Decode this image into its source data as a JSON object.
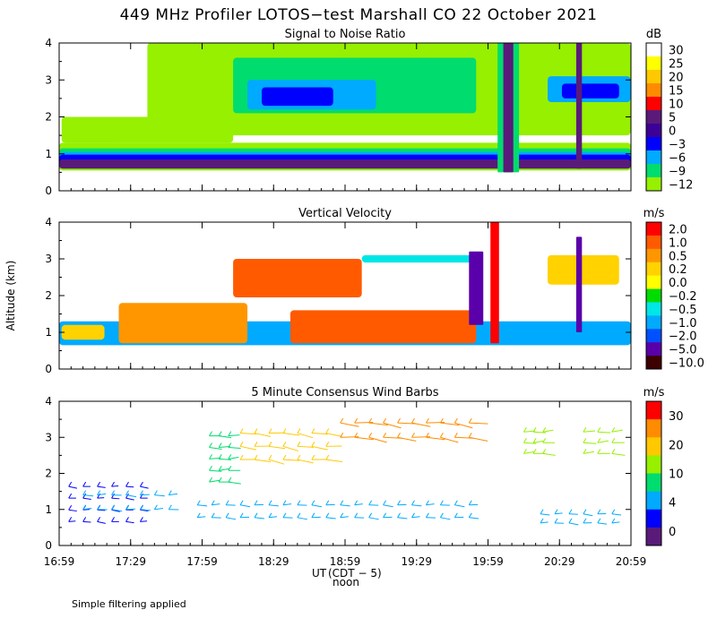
{
  "title": "449 MHz Profiler LOTOS−test Marshall CO 22 October 2021",
  "footnote": "Simple filtering applied",
  "axes": {
    "ylabel": "Altitude (km)",
    "xlabel": "UT",
    "xlabel2": "(CDT − 5)",
    "noon_label": "noon",
    "x_ticks": [
      "16:59",
      "17:29",
      "17:59",
      "18:29",
      "18:59",
      "19:29",
      "19:59",
      "20:29",
      "20:59"
    ],
    "y_ticks": [
      "0",
      "1",
      "2",
      "3",
      "4"
    ]
  },
  "chart_data": [
    {
      "type": "heatmap",
      "title": "Signal to Noise Ratio",
      "xlabel": "UT (CDT − 5)",
      "ylabel": "Altitude (km)",
      "x_range_hours": [
        16.983,
        20.983
      ],
      "ylim": [
        0,
        4
      ],
      "colorbar": {
        "unit": "dB",
        "labels": [
          "30",
          "25",
          "20",
          "15",
          "10",
          "5",
          "0",
          "−3",
          "−6",
          "−9",
          "−12"
        ],
        "colors": [
          "#ffffff",
          "#ffff00",
          "#ffc800",
          "#ff8c00",
          "#ff0000",
          "#5a1a7a",
          "#3c0096",
          "#0000ff",
          "#00aaff",
          "#00dc6e",
          "#96f000"
        ]
      },
      "regions": [
        {
          "kind": "band",
          "x": [
            16.983,
            20.983
          ],
          "y": [
            0.55,
            1.3
          ],
          "color": "#96f000"
        },
        {
          "kind": "band",
          "x": [
            16.983,
            20.983
          ],
          "y": [
            0.6,
            1.15
          ],
          "color": "#00dc6e"
        },
        {
          "kind": "band",
          "x": [
            16.983,
            20.983
          ],
          "y": [
            0.62,
            1.05
          ],
          "color": "#00aaff"
        },
        {
          "kind": "band",
          "x": [
            16.983,
            20.983
          ],
          "y": [
            0.65,
            0.98
          ],
          "color": "#0000ff"
        },
        {
          "kind": "band",
          "x": [
            16.983,
            20.983
          ],
          "y": [
            0.6,
            0.85
          ],
          "color": "#5a1a7a"
        },
        {
          "kind": "band",
          "x": [
            17.0,
            18.2
          ],
          "y": [
            1.3,
            2.0
          ],
          "color": "#96f000"
        },
        {
          "kind": "band",
          "x": [
            17.6,
            20.98
          ],
          "y": [
            1.5,
            4.0
          ],
          "color": "#96f000"
        },
        {
          "kind": "band",
          "x": [
            18.2,
            19.9
          ],
          "y": [
            2.1,
            3.6
          ],
          "color": "#00dc6e"
        },
        {
          "kind": "band",
          "x": [
            18.3,
            19.2
          ],
          "y": [
            2.2,
            3.0
          ],
          "color": "#00aaff"
        },
        {
          "kind": "band",
          "x": [
            18.4,
            18.9
          ],
          "y": [
            2.3,
            2.8
          ],
          "color": "#0000ff"
        },
        {
          "kind": "band",
          "x": [
            20.4,
            20.98
          ],
          "y": [
            2.4,
            3.1
          ],
          "color": "#00aaff"
        },
        {
          "kind": "band",
          "x": [
            20.5,
            20.9
          ],
          "y": [
            2.5,
            2.9
          ],
          "color": "#0000ff"
        },
        {
          "kind": "column",
          "x": [
            20.05,
            20.2
          ],
          "y": [
            0.5,
            4.0
          ],
          "color": "#00dc6e"
        },
        {
          "kind": "column",
          "x": [
            20.09,
            20.16
          ],
          "y": [
            0.5,
            4.0
          ],
          "color": "#5a1a7a"
        },
        {
          "kind": "column",
          "x": [
            20.6,
            20.64
          ],
          "y": [
            0.6,
            4.0
          ],
          "color": "#5a1a7a"
        }
      ]
    },
    {
      "type": "heatmap",
      "title": "Vertical Velocity",
      "xlabel": "UT (CDT − 5)",
      "ylabel": "Altitude (km)",
      "x_range_hours": [
        16.983,
        20.983
      ],
      "ylim": [
        0,
        4
      ],
      "colorbar": {
        "unit": "m/s",
        "labels": [
          "2.0",
          "1.0",
          "0.5",
          "0.2",
          "0.0",
          "−0.2",
          "−0.5",
          "−1.0",
          "−2.0",
          "−5.0",
          "−10.0"
        ],
        "colors": [
          "#ff0000",
          "#ff5a00",
          "#ff9600",
          "#ffd200",
          "#ffff00",
          "#00dc00",
          "#00e6e6",
          "#00aaff",
          "#0050ff",
          "#5a00aa",
          "#3c0000"
        ]
      },
      "regions": [
        {
          "kind": "band",
          "x": [
            16.983,
            20.983
          ],
          "y": [
            0.65,
            1.3
          ],
          "color": "#00aaff"
        },
        {
          "kind": "band",
          "x": [
            17.4,
            18.3
          ],
          "y": [
            0.7,
            1.8
          ],
          "color": "#ff9600"
        },
        {
          "kind": "band",
          "x": [
            18.6,
            19.9
          ],
          "y": [
            0.7,
            1.6
          ],
          "color": "#ff5a00"
        },
        {
          "kind": "band",
          "x": [
            17.0,
            17.3
          ],
          "y": [
            0.8,
            1.2
          ],
          "color": "#ffd200"
        },
        {
          "kind": "band",
          "x": [
            18.2,
            19.1
          ],
          "y": [
            1.95,
            3.0
          ],
          "color": "#ff5a00"
        },
        {
          "kind": "band",
          "x": [
            19.1,
            19.9
          ],
          "y": [
            2.9,
            3.1
          ],
          "color": "#00e6e6"
        },
        {
          "kind": "band",
          "x": [
            20.4,
            20.9
          ],
          "y": [
            2.3,
            3.1
          ],
          "color": "#ffd200"
        },
        {
          "kind": "column",
          "x": [
            19.85,
            19.95
          ],
          "y": [
            1.2,
            3.2
          ],
          "color": "#5a00aa"
        },
        {
          "kind": "column",
          "x": [
            20.0,
            20.06
          ],
          "y": [
            0.7,
            4.0
          ],
          "color": "#ff0000"
        },
        {
          "kind": "column",
          "x": [
            20.6,
            20.64
          ],
          "y": [
            1.0,
            3.6
          ],
          "color": "#5a00aa"
        }
      ]
    },
    {
      "type": "scatter",
      "title": "5 Minute Consensus Wind Barbs",
      "xlabel": "UT (CDT − 5)",
      "ylabel": "Altitude (km)",
      "x_range_hours": [
        16.983,
        20.983
      ],
      "ylim": [
        0,
        4
      ],
      "colorbar": {
        "unit": "m/s",
        "labels": [
          "30",
          "20",
          "10",
          "4",
          "0"
        ],
        "colors": [
          "#ff0000",
          "#ff8c00",
          "#ffc800",
          "#96f000",
          "#00dc6e",
          "#00aaff",
          "#0000ff",
          "#5a1a7a"
        ]
      },
      "barb_groups": [
        {
          "x": [
            17.0,
            17.6
          ],
          "y": [
            0.5,
            1.8
          ],
          "speed_ms": 2,
          "color": "#0000ff"
        },
        {
          "x": [
            17.1,
            17.8
          ],
          "y": [
            0.8,
            1.6
          ],
          "speed_ms": 6,
          "color": "#00aaff"
        },
        {
          "x": [
            17.9,
            19.9
          ],
          "y": [
            0.6,
            1.3
          ],
          "speed_ms": 5,
          "color": "#00aaff"
        },
        {
          "x": [
            18.0,
            18.2
          ],
          "y": [
            1.6,
            3.2
          ],
          "speed_ms": 10,
          "color": "#00dc6e"
        },
        {
          "x": [
            18.2,
            18.9
          ],
          "y": [
            2.2,
            3.3
          ],
          "speed_ms": 17,
          "color": "#ffc800"
        },
        {
          "x": [
            18.9,
            19.9
          ],
          "y": [
            2.8,
            3.6
          ],
          "speed_ms": 22,
          "color": "#ff8c00"
        },
        {
          "x": [
            20.2,
            20.4
          ],
          "y": [
            2.4,
            3.3
          ],
          "speed_ms": 10,
          "color": "#96f000"
        },
        {
          "x": [
            20.6,
            20.9
          ],
          "y": [
            2.4,
            3.3
          ],
          "speed_ms": 11,
          "color": "#96f000"
        },
        {
          "x": [
            20.3,
            20.9
          ],
          "y": [
            0.5,
            1.0
          ],
          "speed_ms": 4,
          "color": "#00aaff"
        }
      ]
    }
  ]
}
